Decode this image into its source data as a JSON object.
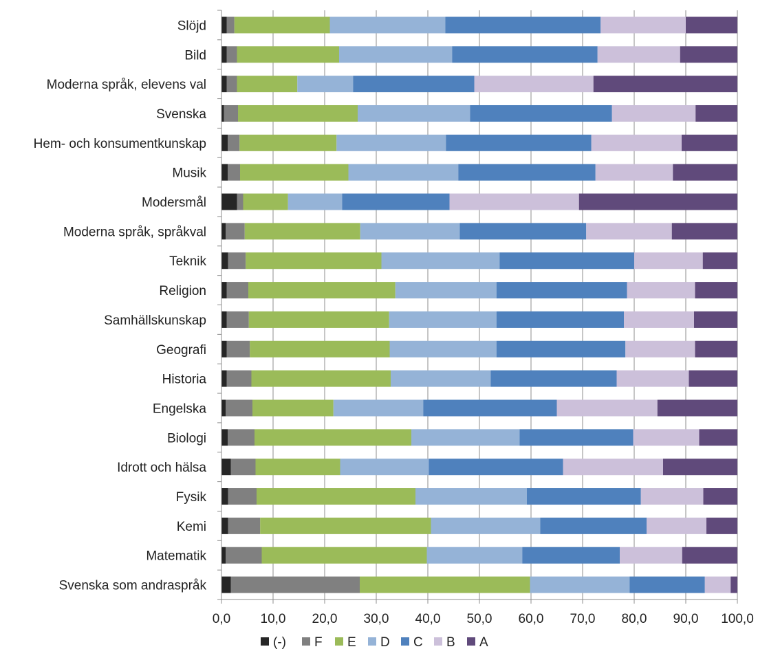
{
  "chart_data": {
    "type": "bar",
    "orientation": "horizontal",
    "stacked": true,
    "percent": true,
    "title": "",
    "xlabel": "",
    "ylabel": "",
    "xlim": [
      0,
      100
    ],
    "x_ticks": [
      "0,0",
      "10,0",
      "20,0",
      "30,0",
      "40,0",
      "50,0",
      "60,0",
      "70,0",
      "80,0",
      "90,0",
      "100,0"
    ],
    "grid": "vertical",
    "legend_position": "bottom",
    "categories": [
      "Slöjd",
      "Bild",
      "Moderna språk, elevens val",
      "Svenska",
      "Hem- och konsumentkunskap",
      "Musik",
      "Modersmål",
      "Moderna språk, språkval",
      "Teknik",
      "Religion",
      "Samhällskunskap",
      "Geografi",
      "Historia",
      "Engelska",
      "Biologi",
      "Idrott och hälsa",
      "Fysik",
      "Kemi",
      "Matematik",
      "Svenska som andraspråk"
    ],
    "series": [
      {
        "name": "(-)",
        "color": "#262626",
        "values": [
          1.0,
          1.0,
          1.0,
          0.5,
          1.2,
          1.2,
          3.0,
          0.8,
          1.3,
          1.0,
          1.0,
          1.0,
          1.0,
          0.8,
          1.2,
          1.8,
          1.3,
          1.3,
          0.8,
          1.8
        ]
      },
      {
        "name": "F",
        "color": "#808080",
        "values": [
          1.5,
          2.0,
          2.0,
          2.7,
          2.3,
          2.4,
          1.2,
          3.7,
          3.4,
          4.2,
          4.3,
          4.5,
          4.8,
          5.2,
          5.2,
          4.8,
          5.5,
          6.2,
          7.0,
          25.0
        ]
      },
      {
        "name": "E",
        "color": "#9bbb59",
        "values": [
          18.5,
          19.8,
          11.7,
          23.2,
          18.8,
          21.0,
          8.7,
          22.4,
          26.3,
          28.5,
          27.2,
          27.1,
          27.0,
          15.7,
          30.4,
          16.4,
          30.8,
          33.1,
          32.0,
          33.0
        ]
      },
      {
        "name": "D",
        "color": "#95b3d7",
        "values": [
          22.4,
          21.9,
          10.8,
          21.8,
          21.2,
          21.3,
          10.5,
          19.3,
          22.9,
          19.6,
          20.8,
          20.7,
          19.4,
          17.4,
          21.0,
          17.2,
          21.6,
          21.2,
          18.5,
          19.3
        ]
      },
      {
        "name": "C",
        "color": "#4f81bd",
        "values": [
          30.1,
          28.2,
          23.5,
          27.5,
          28.2,
          26.6,
          20.8,
          24.5,
          26.1,
          25.3,
          24.7,
          25.0,
          24.4,
          25.9,
          22.0,
          26.0,
          22.1,
          20.6,
          18.9,
          14.6
        ]
      },
      {
        "name": "B",
        "color": "#ccc0da",
        "values": [
          16.5,
          16.0,
          23.1,
          16.2,
          17.5,
          15.0,
          25.1,
          16.6,
          13.3,
          13.2,
          13.6,
          13.5,
          14.0,
          19.5,
          12.8,
          19.4,
          12.1,
          11.6,
          12.1,
          5.0
        ]
      },
      {
        "name": "A",
        "color": "#604a7b",
        "values": [
          10.0,
          11.1,
          27.9,
          8.1,
          10.8,
          12.5,
          30.7,
          12.7,
          6.7,
          8.2,
          8.4,
          8.2,
          9.4,
          15.5,
          7.4,
          14.4,
          6.6,
          6.0,
          10.7,
          1.3
        ]
      }
    ]
  }
}
